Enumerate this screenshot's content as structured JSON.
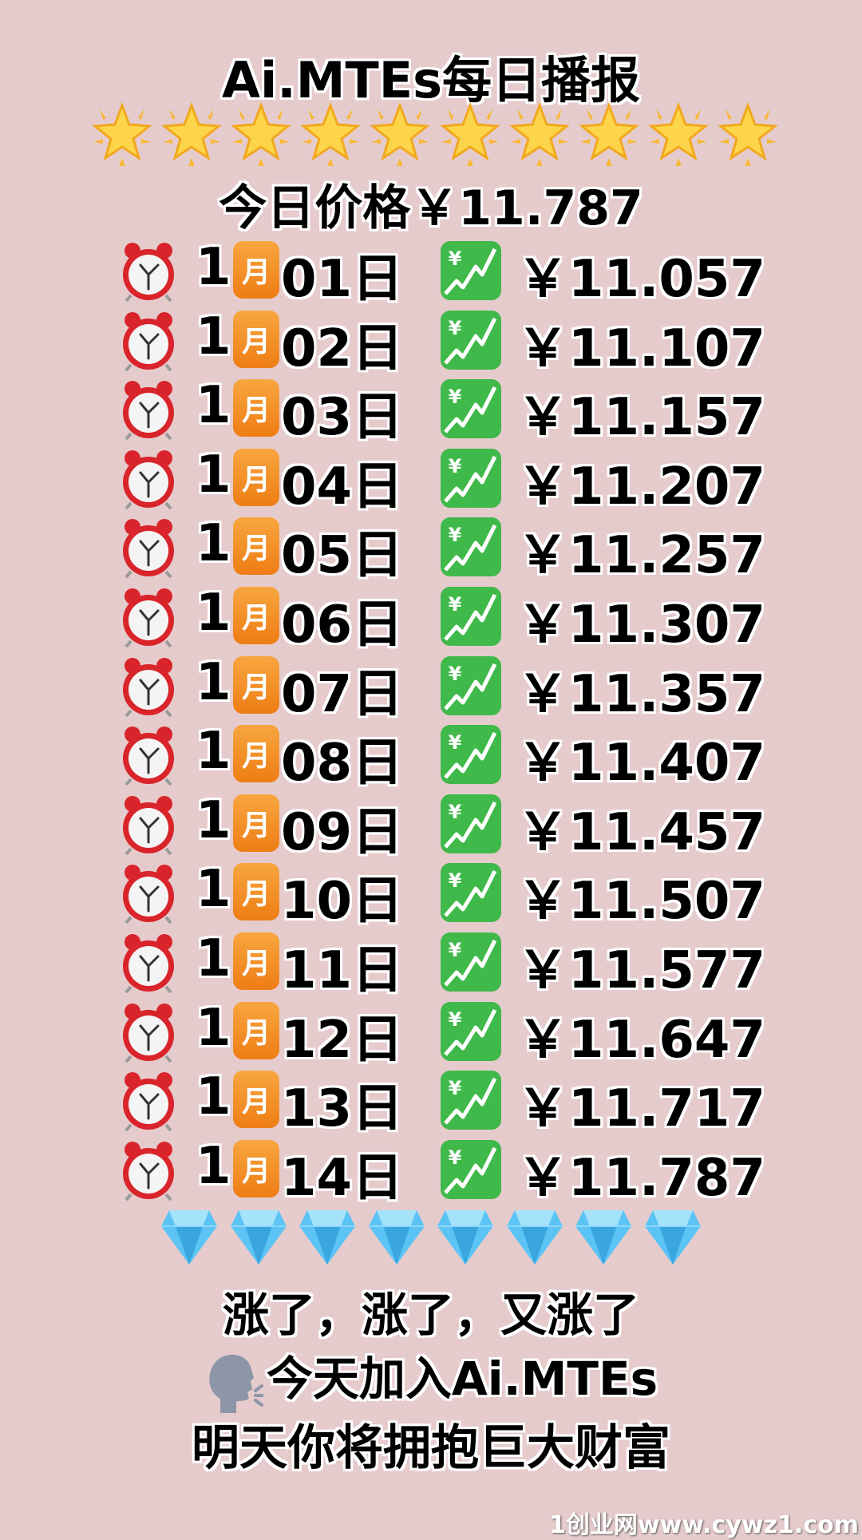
{
  "title": "Ai.MTEs每日播报",
  "star_count": 10,
  "today_price": "今日价格￥11.787",
  "month": "1",
  "month_label": "月",
  "rows": [
    {
      "day": "01日",
      "price": "￥11.057"
    },
    {
      "day": "02日",
      "price": "￥11.107"
    },
    {
      "day": "03日",
      "price": "￥11.157"
    },
    {
      "day": "04日",
      "price": "￥11.207"
    },
    {
      "day": "05日",
      "price": "￥11.257"
    },
    {
      "day": "06日",
      "price": "￥11.307"
    },
    {
      "day": "07日",
      "price": "￥11.357"
    },
    {
      "day": "08日",
      "price": "￥11.407"
    },
    {
      "day": "09日",
      "price": "￥11.457"
    },
    {
      "day": "10日",
      "price": "￥11.507"
    },
    {
      "day": "11日",
      "price": "￥11.577"
    },
    {
      "day": "12日",
      "price": "￥11.647"
    },
    {
      "day": "13日",
      "price": "￥11.717"
    },
    {
      "day": "14日",
      "price": "￥11.787"
    }
  ],
  "diamond_count": 8,
  "line1": "涨了，涨了，又涨了",
  "line2": "今天加入Ai.MTEs",
  "line3": "明天你将拥抱巨大财富",
  "watermark": "1创业网www.cywz1.com",
  "icons": {
    "row_icon": "alarm-clock-icon",
    "month_icon": "calendar-month-icon",
    "trend_icon": "chart-yen-up-icon",
    "decor_top": "star-icon",
    "decor_bottom": "gem-icon",
    "speaker": "speaking-head-icon"
  },
  "colors": {
    "background": "#e6cbcd",
    "month_box": "#f29028",
    "trend_box": "#3fb94a"
  }
}
